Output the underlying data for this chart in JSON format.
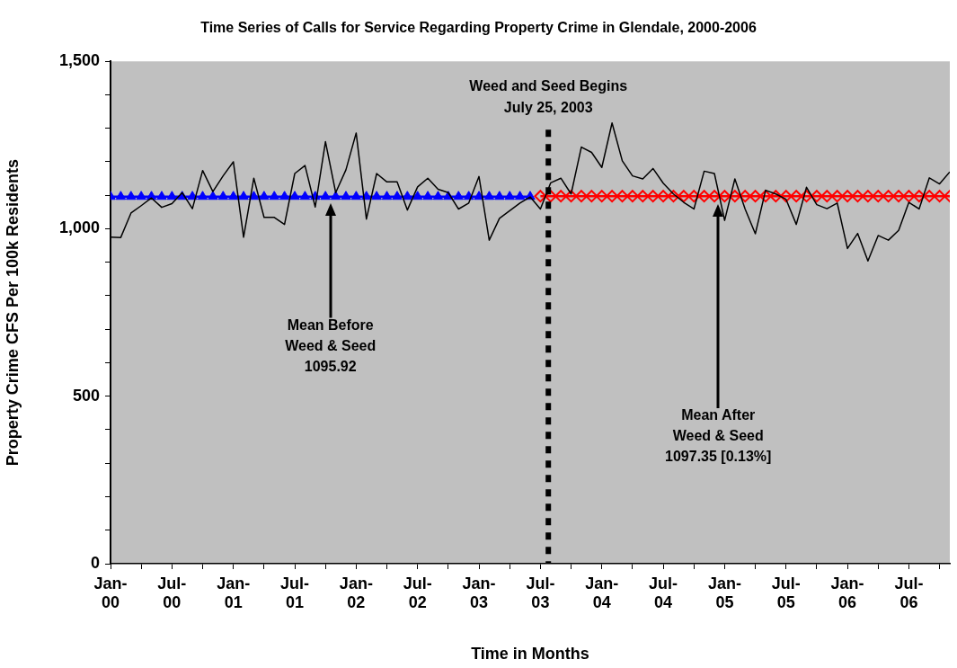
{
  "chart_data": {
    "type": "line",
    "title": "Time Series of Calls for Service Regarding Property Crime in Glendale, 2000-2006",
    "xlabel": "Time in Months",
    "ylabel": "Property Crime CFS Per 100k Residents",
    "x": [
      "2000-01",
      "2000-02",
      "2000-03",
      "2000-04",
      "2000-05",
      "2000-06",
      "2000-07",
      "2000-08",
      "2000-09",
      "2000-10",
      "2000-11",
      "2000-12",
      "2001-01",
      "2001-02",
      "2001-03",
      "2001-04",
      "2001-05",
      "2001-06",
      "2001-07",
      "2001-08",
      "2001-09",
      "2001-10",
      "2001-11",
      "2001-12",
      "2002-01",
      "2002-02",
      "2002-03",
      "2002-04",
      "2002-05",
      "2002-06",
      "2002-07",
      "2002-08",
      "2002-09",
      "2002-10",
      "2002-11",
      "2002-12",
      "2003-01",
      "2003-02",
      "2003-03",
      "2003-04",
      "2003-05",
      "2003-06",
      "2003-07",
      "2003-08",
      "2003-09",
      "2003-10",
      "2003-11",
      "2003-12",
      "2004-01",
      "2004-02",
      "2004-03",
      "2004-04",
      "2004-05",
      "2004-06",
      "2004-07",
      "2004-08",
      "2004-09",
      "2004-10",
      "2004-11",
      "2004-12",
      "2005-01",
      "2005-02",
      "2005-03",
      "2005-04",
      "2005-05",
      "2005-06",
      "2005-07",
      "2005-08",
      "2005-09",
      "2005-10",
      "2005-11",
      "2005-12",
      "2006-01",
      "2006-02",
      "2006-03",
      "2006-04",
      "2006-05",
      "2006-06",
      "2006-07",
      "2006-08",
      "2006-09",
      "2006-10",
      "2006-11"
    ],
    "series": [
      {
        "color": "#000000",
        "marker": "none",
        "values": [
          975,
          974,
          1047,
          1069,
          1092,
          1064,
          1075,
          1108,
          1060,
          1174,
          1111,
          1158,
          1200,
          975,
          1151,
          1034,
          1034,
          1013,
          1165,
          1189,
          1065,
          1260,
          1108,
          1176,
          1286,
          1029,
          1165,
          1140,
          1140,
          1056,
          1125,
          1151,
          1118,
          1108,
          1059,
          1077,
          1156,
          966,
          1031,
          1054,
          1077,
          1095,
          1059,
          1137,
          1151,
          1104,
          1244,
          1228,
          1183,
          1316,
          1203,
          1158,
          1149,
          1180,
          1136,
          1104,
          1079,
          1059,
          1172,
          1165,
          1025,
          1149,
          1059,
          985,
          1115,
          1104,
          1088,
          1013,
          1124,
          1072,
          1060,
          1077,
          941,
          986,
          904,
          980,
          966,
          995,
          1079,
          1059,
          1152,
          1134,
          1170
        ]
      },
      {
        "color": "#0000ff",
        "marker": "triangle",
        "values": [
          1095.92,
          1095.92,
          1095.92,
          1095.92,
          1095.92,
          1095.92,
          1095.92,
          1095.92,
          1095.92,
          1095.92,
          1095.92,
          1095.92,
          1095.92,
          1095.92,
          1095.92,
          1095.92,
          1095.92,
          1095.92,
          1095.92,
          1095.92,
          1095.92,
          1095.92,
          1095.92,
          1095.92,
          1095.92,
          1095.92,
          1095.92,
          1095.92,
          1095.92,
          1095.92,
          1095.92,
          1095.92,
          1095.92,
          1095.92,
          1095.92,
          1095.92,
          1095.92,
          1095.92,
          1095.92,
          1095.92,
          1095.92,
          1095.92,
          null,
          null,
          null,
          null,
          null,
          null,
          null,
          null,
          null,
          null,
          null,
          null,
          null,
          null,
          null,
          null,
          null,
          null,
          null,
          null,
          null,
          null,
          null,
          null,
          null,
          null,
          null,
          null,
          null,
          null,
          null,
          null,
          null,
          null,
          null,
          null,
          null,
          null,
          null,
          null,
          null
        ]
      },
      {
        "color": "#ff0000",
        "marker": "diamond",
        "values": [
          null,
          null,
          null,
          null,
          null,
          null,
          null,
          null,
          null,
          null,
          null,
          null,
          null,
          null,
          null,
          null,
          null,
          null,
          null,
          null,
          null,
          null,
          null,
          null,
          null,
          null,
          null,
          null,
          null,
          null,
          null,
          null,
          null,
          null,
          null,
          null,
          null,
          null,
          null,
          null,
          null,
          null,
          1097.35,
          1097.35,
          1097.35,
          1097.35,
          1097.35,
          1097.35,
          1097.35,
          1097.35,
          1097.35,
          1097.35,
          1097.35,
          1097.35,
          1097.35,
          1097.35,
          1097.35,
          1097.35,
          1097.35,
          1097.35,
          1097.35,
          1097.35,
          1097.35,
          1097.35,
          1097.35,
          1097.35,
          1097.35,
          1097.35,
          1097.35,
          1097.35,
          1097.35,
          1097.35,
          1097.35,
          1097.35,
          1097.35,
          1097.35,
          1097.35,
          1097.35,
          1097.35,
          1097.35,
          1097.35,
          1097.35,
          1097.35
        ]
      }
    ],
    "xlim": [
      "2000-01",
      "2006-11"
    ],
    "xticks": [
      {
        "value": "2000-01",
        "label": "Jan-00"
      },
      {
        "value": "2000-04",
        "label": null
      },
      {
        "value": "2000-07",
        "label": "Jul-00"
      },
      {
        "value": "2000-10",
        "label": null
      },
      {
        "value": "2001-01",
        "label": "Jan-01"
      },
      {
        "value": "2001-04",
        "label": null
      },
      {
        "value": "2001-07",
        "label": "Jul-01"
      },
      {
        "value": "2001-10",
        "label": null
      },
      {
        "value": "2002-01",
        "label": "Jan-02"
      },
      {
        "value": "2002-04",
        "label": null
      },
      {
        "value": "2002-07",
        "label": "Jul-02"
      },
      {
        "value": "2002-10",
        "label": null
      },
      {
        "value": "2003-01",
        "label": "Jan-03"
      },
      {
        "value": "2003-04",
        "label": null
      },
      {
        "value": "2003-07",
        "label": "Jul-03"
      },
      {
        "value": "2003-10",
        "label": null
      },
      {
        "value": "2004-01",
        "label": "Jan-04"
      },
      {
        "value": "2004-04",
        "label": null
      },
      {
        "value": "2004-07",
        "label": "Jul-04"
      },
      {
        "value": "2004-10",
        "label": null
      },
      {
        "value": "2005-01",
        "label": "Jan-05"
      },
      {
        "value": "2005-04",
        "label": null
      },
      {
        "value": "2005-07",
        "label": "Jul-05"
      },
      {
        "value": "2005-10",
        "label": null
      },
      {
        "value": "2006-01",
        "label": "Jan-06"
      },
      {
        "value": "2006-04",
        "label": null
      },
      {
        "value": "2006-07",
        "label": "Jul-06"
      },
      {
        "value": "2006-10",
        "label": null
      }
    ],
    "ylim": [
      0,
      1500
    ],
    "yticks": [
      {
        "value": 0,
        "label": "0"
      },
      {
        "value": 100,
        "label": null
      },
      {
        "value": 200,
        "label": null
      },
      {
        "value": 300,
        "label": null
      },
      {
        "value": 400,
        "label": null
      },
      {
        "value": 500,
        "label": "500"
      },
      {
        "value": 600,
        "label": null
      },
      {
        "value": 700,
        "label": null
      },
      {
        "value": 800,
        "label": null
      },
      {
        "value": 900,
        "label": null
      },
      {
        "value": 1000,
        "label": "1,000"
      },
      {
        "value": 1100,
        "label": null
      },
      {
        "value": 1200,
        "label": null
      },
      {
        "value": 1300,
        "label": null
      },
      {
        "value": 1400,
        "label": null
      },
      {
        "value": 1500,
        "label": "1,500"
      }
    ],
    "grid": false,
    "ref_lines": [
      {
        "axis": "x",
        "value": "2003-07-25",
        "label": "Weed and Seed Begins\nJuly 25, 2003",
        "color": "#000000",
        "line_style": "dashed"
      }
    ],
    "annotations": [
      "Mean Before\nWeed & Seed\n1095.92",
      "Mean After\nWeed & Seed\n1097.35 [0.13%]"
    ]
  }
}
